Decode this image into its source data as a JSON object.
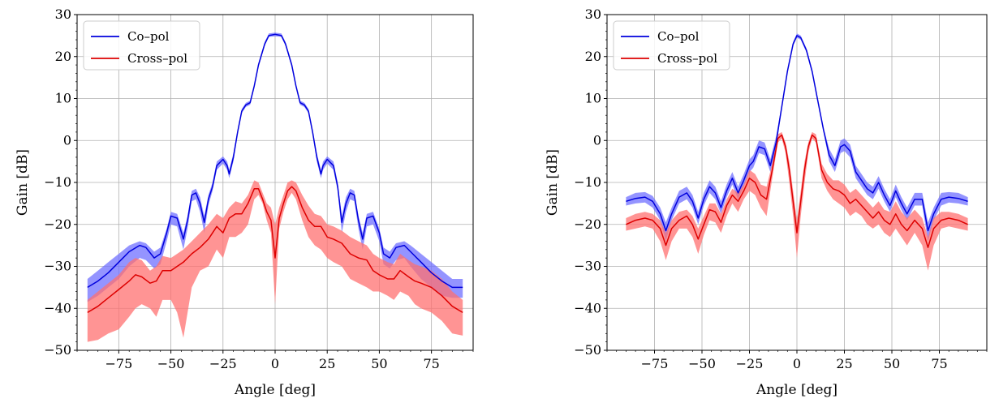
{
  "chart_data": [
    {
      "type": "line",
      "xlabel": "Angle [deg]",
      "ylabel": "Gain [dB]",
      "xlim": [
        -95,
        95
      ],
      "ylim": [
        -50,
        30
      ],
      "xticks": [
        -75,
        -50,
        -25,
        0,
        25,
        50,
        75
      ],
      "yticks": [
        -50,
        -40,
        -30,
        -20,
        -10,
        0,
        10,
        20,
        30
      ],
      "xtick_labels": [
        "−75",
        "−50",
        "−25",
        "0",
        "25",
        "50",
        "75"
      ],
      "ytick_labels": [
        "−50",
        "−40",
        "−30",
        "−20",
        "−10",
        "0",
        "10",
        "20",
        "30"
      ],
      "grid": true,
      "legend_position": "top-left",
      "series": [
        {
          "name": "Co–pol",
          "color": "#0000dd",
          "band_color": "#7070ff",
          "x": [
            -90,
            -85,
            -80,
            -75,
            -70,
            -65,
            -62,
            -58,
            -55,
            -52,
            -50,
            -47,
            -44,
            -42,
            -40,
            -38,
            -36,
            -34,
            -32,
            -30,
            -28,
            -25,
            -23,
            -22,
            -20,
            -18,
            -16,
            -14,
            -12,
            -10,
            -8,
            -5,
            -3,
            0,
            3,
            5,
            8,
            10,
            12,
            14,
            16,
            18,
            20,
            22,
            23,
            25,
            28,
            30,
            32,
            34,
            36,
            38,
            40,
            42,
            44,
            47,
            50,
            52,
            55,
            58,
            62,
            65,
            70,
            75,
            80,
            85,
            90
          ],
          "y": [
            -35,
            -33.5,
            -31.5,
            -29,
            -26.5,
            -25,
            -25.5,
            -28,
            -27,
            -22,
            -18,
            -18.5,
            -23.5,
            -19,
            -13,
            -12.5,
            -15,
            -19.5,
            -14,
            -11,
            -6,
            -4.5,
            -6,
            -8,
            -4,
            2,
            7,
            8.5,
            9,
            13,
            18,
            23,
            25,
            25.3,
            25,
            23,
            18,
            13,
            9,
            8.5,
            7,
            2,
            -4,
            -8,
            -6,
            -4.5,
            -6,
            -11,
            -19.5,
            -15,
            -12.5,
            -13,
            -19,
            -23.5,
            -18.5,
            -18,
            -22,
            -27,
            -28,
            -25.5,
            -25,
            -26.5,
            -29,
            -31.5,
            -33.5,
            -35,
            -35
          ],
          "band_lower": [
            -38.5,
            -37,
            -35,
            -33,
            -30,
            -28,
            -28.5,
            -30.5,
            -29.5,
            -24,
            -20,
            -20.5,
            -26,
            -21,
            -14.5,
            -14,
            -17,
            -22,
            -15.5,
            -12,
            -7,
            -5.5,
            -7,
            -9,
            -5,
            1.5,
            6.5,
            8,
            8.5,
            12.5,
            17.5,
            22.5,
            24.7,
            24.8,
            24.7,
            22.5,
            17.5,
            12.5,
            8.5,
            8,
            6.5,
            1.5,
            -5,
            -9,
            -7,
            -5.5,
            -7,
            -12,
            -22,
            -17,
            -14,
            -14.5,
            -21,
            -26,
            -20.5,
            -20,
            -24,
            -29.5,
            -30.5,
            -28.5,
            -28,
            -30,
            -33,
            -35,
            -37,
            -37.5,
            -37.5
          ],
          "band_upper": [
            -33,
            -31,
            -29,
            -27,
            -25,
            -24,
            -24.5,
            -26.5,
            -25.5,
            -21,
            -17,
            -17.5,
            -22,
            -18,
            -12,
            -11.5,
            -13.5,
            -18,
            -13,
            -10,
            -5,
            -3.8,
            -5,
            -7,
            -3,
            2.5,
            7.5,
            9,
            9.5,
            13.5,
            18.5,
            23.5,
            25.5,
            25.7,
            25.5,
            23.5,
            18.5,
            13.5,
            9.5,
            9,
            7.5,
            2.5,
            -3,
            -7,
            -5,
            -3.8,
            -5,
            -10,
            -18,
            -13.5,
            -11.5,
            -12,
            -18,
            -22,
            -17.5,
            -17,
            -21,
            -25.5,
            -26.5,
            -24.5,
            -24,
            -25,
            -27,
            -29,
            -31,
            -33,
            -33
          ]
        },
        {
          "name": "Cross–pol",
          "color": "#dd0000",
          "band_color": "#ff7070",
          "x": [
            -90,
            -85,
            -80,
            -75,
            -70,
            -67,
            -64,
            -60,
            -57,
            -54,
            -50,
            -47,
            -44,
            -40,
            -36,
            -32,
            -28,
            -25,
            -22,
            -19,
            -16,
            -13,
            -10,
            -8,
            -6,
            -4,
            -2,
            0,
            2,
            4,
            6,
            8,
            10,
            13,
            16,
            19,
            22,
            25,
            28,
            32,
            36,
            40,
            44,
            47,
            50,
            54,
            57,
            60,
            64,
            67,
            70,
            75,
            80,
            85,
            90
          ],
          "y": [
            -41,
            -39.5,
            -37.5,
            -35.5,
            -33.5,
            -32,
            -32.5,
            -34,
            -33.5,
            -31,
            -31,
            -30,
            -29,
            -27,
            -25.5,
            -23.5,
            -20.5,
            -22,
            -18.5,
            -17.5,
            -17.5,
            -15,
            -11.5,
            -11.5,
            -14,
            -17,
            -19,
            -28,
            -18.5,
            -15,
            -12,
            -11,
            -12,
            -16,
            -19,
            -20.5,
            -20.5,
            -23,
            -23.5,
            -24.5,
            -27,
            -28,
            -28.5,
            -31,
            -32,
            -33,
            -33,
            -31,
            -32.5,
            -33.5,
            -34,
            -35,
            -37,
            -39.5,
            -41
          ],
          "band_lower": [
            -48,
            -47.5,
            -46,
            -45,
            -42,
            -40,
            -39,
            -40,
            -42,
            -38,
            -38,
            -41,
            -47,
            -35,
            -31,
            -30,
            -26,
            -28,
            -23,
            -23,
            -22,
            -20,
            -14,
            -13,
            -15,
            -19,
            -22,
            -39,
            -21,
            -17,
            -14,
            -12.5,
            -14,
            -19,
            -23,
            -25,
            -26,
            -28,
            -29,
            -30,
            -33,
            -34,
            -35,
            -36,
            -36,
            -37,
            -38,
            -36,
            -37,
            -39,
            -40,
            -41,
            -43,
            -46,
            -46.5
          ],
          "band_upper": [
            -38,
            -36,
            -34,
            -32,
            -29,
            -28,
            -28.5,
            -31,
            -30,
            -27.5,
            -28,
            -27,
            -26,
            -24,
            -22,
            -20,
            -17.5,
            -18.5,
            -16,
            -14.5,
            -15,
            -13,
            -9.5,
            -10,
            -12.5,
            -15,
            -16,
            -20,
            -16,
            -13,
            -10,
            -9.5,
            -10,
            -13,
            -15.5,
            -17.5,
            -18,
            -20,
            -20.5,
            -21.5,
            -23,
            -24,
            -25,
            -27,
            -28,
            -29,
            -29.5,
            -27,
            -28.5,
            -29.5,
            -30,
            -31,
            -33,
            -36,
            -38
          ]
        }
      ]
    },
    {
      "type": "line",
      "xlabel": "Angle [deg]",
      "ylabel": "Gain [dB]",
      "xlim": [
        -100,
        100
      ],
      "ylim": [
        -50,
        30
      ],
      "xticks": [
        -75,
        -50,
        -25,
        0,
        25,
        50,
        75
      ],
      "yticks": [
        -50,
        -40,
        -30,
        -20,
        -10,
        0,
        10,
        20,
        30
      ],
      "xtick_labels": [
        "−75",
        "−50",
        "−25",
        "0",
        "25",
        "50",
        "75"
      ],
      "ytick_labels": [
        "−50",
        "−40",
        "−30",
        "−20",
        "−10",
        "0",
        "10",
        "20",
        "30"
      ],
      "grid": true,
      "legend_position": "top-left",
      "series": [
        {
          "name": "Co–pol",
          "color": "#0000dd",
          "band_color": "#7070ff",
          "x": [
            -90,
            -85,
            -80,
            -76,
            -72,
            -69,
            -66,
            -62,
            -58,
            -55,
            -52,
            -49,
            -46,
            -43,
            -40,
            -37,
            -34,
            -31,
            -28,
            -25,
            -23,
            -20,
            -17,
            -14,
            -11,
            -8,
            -5,
            -2,
            0,
            2,
            5,
            8,
            11,
            14,
            17,
            20,
            23,
            25,
            28,
            31,
            34,
            37,
            40,
            43,
            46,
            49,
            52,
            55,
            58,
            62,
            66,
            69,
            72,
            76,
            80,
            85,
            90
          ],
          "y": [
            -14.5,
            -13.8,
            -13.5,
            -14.5,
            -17.5,
            -21.5,
            -17.5,
            -13.5,
            -12.5,
            -14.5,
            -18.5,
            -14,
            -11,
            -12.5,
            -16,
            -12,
            -9,
            -12.5,
            -9.5,
            -6,
            -5,
            -1.5,
            -2,
            -6,
            -0.5,
            8,
            16.5,
            23,
            25,
            24.5,
            21.5,
            16.5,
            9.5,
            2.5,
            -3.5,
            -6,
            -1.5,
            -1,
            -2.5,
            -7.5,
            -9.5,
            -11.5,
            -12.5,
            -10,
            -13,
            -15.5,
            -12,
            -15,
            -17.5,
            -14,
            -14,
            -21.5,
            -17.5,
            -14,
            -13.5,
            -13.8,
            -14.5
          ],
          "band_lower": [
            -15.5,
            -15,
            -14.8,
            -16,
            -19,
            -24,
            -19,
            -15,
            -14,
            -16,
            -20,
            -15.5,
            -12.5,
            -14,
            -17.5,
            -13.5,
            -10.5,
            -14,
            -11,
            -7.5,
            -6.5,
            -3,
            -3.5,
            -7.5,
            -2,
            7.5,
            16,
            22.5,
            24.5,
            24,
            21,
            16,
            9,
            2,
            -5,
            -7.5,
            -3,
            -2.5,
            -4,
            -9,
            -11,
            -13,
            -14,
            -11.5,
            -14.5,
            -17,
            -13.5,
            -16.5,
            -19,
            -15.5,
            -15.5,
            -24,
            -19,
            -15.5,
            -14.8,
            -15,
            -15.5
          ],
          "band_upper": [
            -13.5,
            -12.5,
            -12.3,
            -13.2,
            -16,
            -19.5,
            -16,
            -12,
            -11,
            -13,
            -17,
            -12.5,
            -9.5,
            -11,
            -14.5,
            -10.5,
            -7.5,
            -11,
            -8,
            -4.5,
            -3.5,
            0,
            -0.5,
            -4.5,
            1,
            8.5,
            17,
            23.5,
            25.5,
            25,
            22,
            17,
            10,
            3,
            -2,
            -4.5,
            0,
            0.5,
            -1,
            -6,
            -8,
            -10,
            -11,
            -8.5,
            -11.5,
            -14,
            -10.5,
            -13.5,
            -16,
            -12.5,
            -12.5,
            -19.5,
            -16,
            -12.5,
            -12.3,
            -12.5,
            -13.5
          ]
        },
        {
          "name": "Cross–pol",
          "color": "#dd0000",
          "band_color": "#ff7070",
          "x": [
            -90,
            -85,
            -80,
            -76,
            -72,
            -69,
            -66,
            -62,
            -58,
            -55,
            -52,
            -49,
            -46,
            -43,
            -40,
            -37,
            -34,
            -31,
            -28,
            -25,
            -22,
            -19,
            -16,
            -13,
            -10,
            -8,
            -6,
            -4,
            -2,
            0,
            2,
            4,
            6,
            8,
            10,
            13,
            16,
            19,
            22,
            25,
            28,
            31,
            34,
            37,
            40,
            43,
            46,
            49,
            52,
            55,
            58,
            62,
            66,
            69,
            72,
            76,
            80,
            85,
            90
          ],
          "y": [
            -20,
            -19,
            -18.5,
            -19,
            -21,
            -25,
            -21,
            -19,
            -18,
            -20,
            -23.5,
            -20,
            -16.5,
            -17,
            -19.5,
            -15.5,
            -13,
            -14.5,
            -12,
            -9,
            -10,
            -13,
            -14,
            -7,
            0.5,
            1.3,
            -1.5,
            -7,
            -14.5,
            -22,
            -14.5,
            -7,
            -1.5,
            1.3,
            0.5,
            -7,
            -10,
            -11.5,
            -12,
            -13,
            -15,
            -14,
            -15.5,
            -17,
            -18.5,
            -17,
            -19,
            -20,
            -17.5,
            -20,
            -21.5,
            -19,
            -21,
            -25.5,
            -21,
            -19,
            -18.5,
            -19,
            -20
          ],
          "band_lower": [
            -21.5,
            -21,
            -20.5,
            -21,
            -24,
            -28.5,
            -24,
            -21,
            -21,
            -23,
            -27,
            -22.5,
            -19,
            -19.5,
            -22,
            -18,
            -15,
            -17,
            -14,
            -12,
            -13,
            -16,
            -18,
            -9,
            -0.5,
            0.5,
            -3,
            -10,
            -18,
            -28,
            -18,
            -10,
            -3,
            0.5,
            -0.5,
            -9,
            -12,
            -14,
            -15,
            -16,
            -18,
            -17,
            -18,
            -20,
            -21,
            -20,
            -22,
            -23,
            -21,
            -23,
            -25,
            -22,
            -25,
            -31,
            -25,
            -21,
            -20.5,
            -21,
            -21.5
          ],
          "band_upper": [
            -18.5,
            -17.5,
            -17,
            -17.5,
            -19,
            -22,
            -19,
            -17,
            -16.5,
            -18,
            -21,
            -18,
            -15,
            -15,
            -17.5,
            -14,
            -11.5,
            -12.5,
            -10.5,
            -7,
            -8,
            -10.5,
            -11,
            -5.5,
            1.5,
            2,
            -0.5,
            -5,
            -12,
            -19,
            -12,
            -5,
            -0.5,
            2,
            1.5,
            -5.5,
            -8,
            -9.5,
            -9.5,
            -10.5,
            -12.5,
            -11.5,
            -13,
            -14.5,
            -16,
            -14.5,
            -16.5,
            -17,
            -14.5,
            -17,
            -18.5,
            -16.5,
            -18.5,
            -23,
            -18.5,
            -17,
            -17,
            -17.5,
            -18.5
          ]
        }
      ]
    }
  ]
}
